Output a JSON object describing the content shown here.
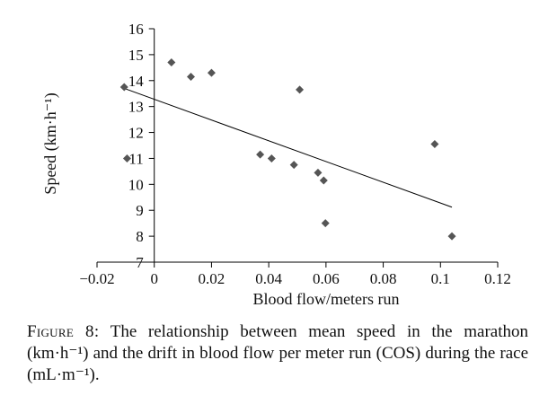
{
  "chart_data": {
    "type": "scatter",
    "title": "",
    "xlabel": "Blood flow/meters run",
    "ylabel": "Speed (km·h⁻¹)",
    "xlim": [
      -0.02,
      0.12
    ],
    "ylim": [
      7,
      16
    ],
    "x_ticks": [
      -0.02,
      0,
      0.02,
      0.04,
      0.06,
      0.08,
      0.1,
      0.12
    ],
    "x_tick_labels": [
      "−0.02",
      "0",
      "0.02",
      "0.04",
      "0.06",
      "0.08",
      "0.1",
      "0.12"
    ],
    "y_ticks": [
      7,
      8,
      9,
      10,
      11,
      12,
      13,
      14,
      15,
      16
    ],
    "y_tick_labels": [
      "7",
      "8",
      "9",
      "10",
      "11",
      "12",
      "13",
      "14",
      "15",
      "16"
    ],
    "grid": false,
    "legend": null,
    "points": [
      {
        "x": -0.0105,
        "y": 13.75
      },
      {
        "x": -0.0095,
        "y": 11.0
      },
      {
        "x": 0.006,
        "y": 14.7
      },
      {
        "x": 0.0128,
        "y": 14.15
      },
      {
        "x": 0.02,
        "y": 14.3
      },
      {
        "x": 0.037,
        "y": 11.15
      },
      {
        "x": 0.041,
        "y": 11.0
      },
      {
        "x": 0.0488,
        "y": 10.75
      },
      {
        "x": 0.0508,
        "y": 13.65
      },
      {
        "x": 0.0572,
        "y": 10.45
      },
      {
        "x": 0.0592,
        "y": 10.15
      },
      {
        "x": 0.0598,
        "y": 8.5
      },
      {
        "x": 0.098,
        "y": 11.55
      },
      {
        "x": 0.104,
        "y": 8.0
      }
    ],
    "trendline": {
      "x": [
        -0.0105,
        0.104
      ],
      "y": [
        13.7,
        9.12
      ]
    },
    "marker_color": "#555555",
    "line_color": "#000000"
  },
  "caption": {
    "lead": "Figure 8:",
    "text": " The relationship between mean speed in the marathon (km·h⁻¹) and the drift in blood flow per meter run (COS) during the race (mL·m⁻¹)."
  }
}
